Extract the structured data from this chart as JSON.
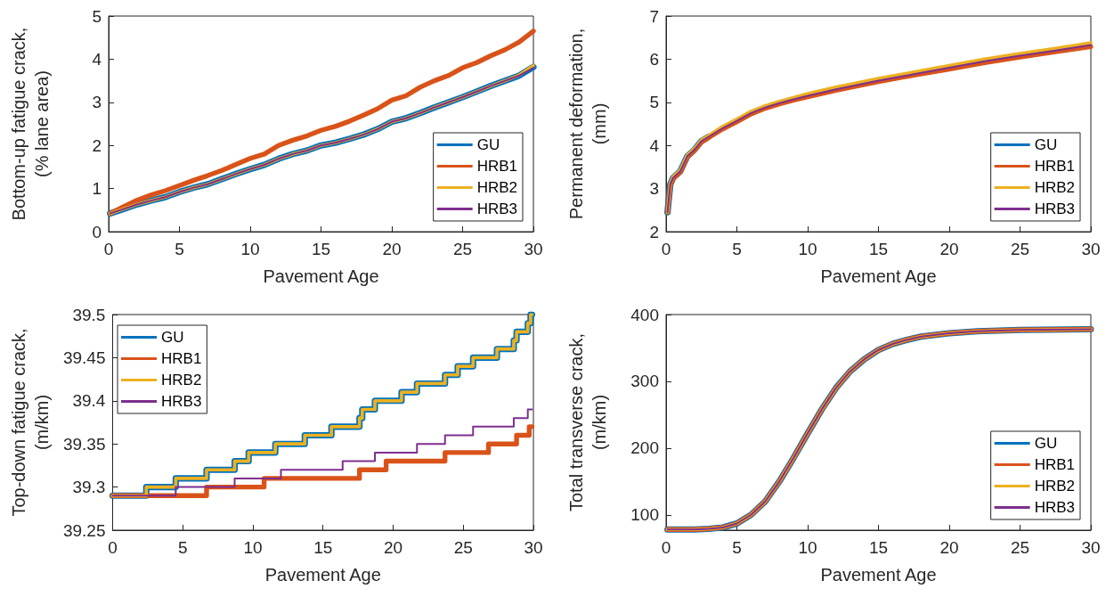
{
  "chart_data": [
    {
      "type": "line",
      "xlabel": "Pavement Age",
      "ylabel": "Bottom-up fatigue crack, (% lane area)",
      "xlim": [
        0,
        30
      ],
      "xticks": [
        0,
        5,
        10,
        15,
        20,
        25,
        30
      ],
      "ylim": [
        0,
        5
      ],
      "yticks": [
        0,
        1,
        2,
        3,
        4,
        5
      ],
      "grid": false,
      "legend": "bottom right",
      "marker": "none",
      "line_style": "solid",
      "x": [
        0.1,
        1,
        2,
        3,
        4,
        5,
        6,
        7,
        8,
        9,
        10,
        11,
        12,
        13,
        14,
        15,
        16,
        17,
        18,
        19,
        20,
        21,
        22,
        23,
        24,
        25,
        26,
        27,
        28,
        29,
        30
      ],
      "series": [
        {
          "name": "GU",
          "color": "#0072bd",
          "values": [
            0.42,
            0.52,
            0.63,
            0.72,
            0.8,
            0.92,
            1.02,
            1.1,
            1.22,
            1.34,
            1.45,
            1.55,
            1.69,
            1.8,
            1.88,
            2.0,
            2.06,
            2.15,
            2.25,
            2.38,
            2.55,
            2.63,
            2.75,
            2.88,
            3.0,
            3.12,
            3.25,
            3.38,
            3.5,
            3.62,
            3.82
          ]
        },
        {
          "name": "HRB1",
          "color": "#d95319",
          "values": [
            0.42,
            0.57,
            0.73,
            0.85,
            0.95,
            1.07,
            1.19,
            1.3,
            1.42,
            1.56,
            1.7,
            1.8,
            2.0,
            2.12,
            2.22,
            2.35,
            2.44,
            2.56,
            2.7,
            2.85,
            3.05,
            3.15,
            3.35,
            3.5,
            3.62,
            3.8,
            3.92,
            4.08,
            4.22,
            4.4,
            4.65
          ]
        },
        {
          "name": "HRB2",
          "color": "#edb120",
          "values": [
            0.42,
            0.52,
            0.63,
            0.72,
            0.8,
            0.92,
            1.02,
            1.1,
            1.22,
            1.34,
            1.45,
            1.55,
            1.69,
            1.8,
            1.88,
            2.0,
            2.06,
            2.15,
            2.25,
            2.38,
            2.55,
            2.63,
            2.75,
            2.88,
            3.0,
            3.12,
            3.25,
            3.38,
            3.5,
            3.63,
            3.85
          ]
        },
        {
          "name": "HRB3",
          "color": "#7e2f8e",
          "values": [
            0.42,
            0.52,
            0.63,
            0.72,
            0.8,
            0.92,
            1.02,
            1.1,
            1.22,
            1.34,
            1.45,
            1.55,
            1.69,
            1.8,
            1.88,
            2.0,
            2.06,
            2.15,
            2.25,
            2.38,
            2.55,
            2.63,
            2.75,
            2.88,
            3.0,
            3.12,
            3.25,
            3.38,
            3.5,
            3.62,
            3.8
          ]
        }
      ]
    },
    {
      "type": "line",
      "xlabel": "Pavement Age",
      "ylabel": "Permanent deformation, (mm)",
      "xlim": [
        0,
        30
      ],
      "xticks": [
        0,
        5,
        10,
        15,
        20,
        25,
        30
      ],
      "ylim": [
        2,
        7
      ],
      "yticks": [
        2,
        3,
        4,
        5,
        6,
        7
      ],
      "grid": false,
      "legend": "bottom right",
      "marker": "none",
      "line_style": "solid",
      "x": [
        0.1,
        0.3,
        0.5,
        1,
        1.5,
        2,
        2.5,
        3,
        4,
        5,
        6,
        7,
        8,
        9,
        10,
        12,
        15,
        17.5,
        20,
        22.5,
        25,
        27.5,
        30
      ],
      "series": [
        {
          "name": "GU",
          "color": "#0072bd",
          "values": [
            2.45,
            3.1,
            3.25,
            3.4,
            3.75,
            3.9,
            4.1,
            4.2,
            null,
            null,
            null,
            null,
            null,
            null,
            null,
            null,
            null,
            null,
            null,
            null,
            null,
            null,
            null
          ]
        },
        {
          "name": "HRB1",
          "color": "#d95319",
          "values": [
            2.45,
            3.08,
            3.23,
            3.38,
            3.73,
            3.88,
            4.08,
            4.18,
            4.38,
            4.55,
            4.73,
            4.86,
            4.96,
            5.05,
            5.13,
            5.28,
            5.48,
            5.63,
            5.77,
            5.92,
            6.05,
            6.17,
            6.29
          ]
        },
        {
          "name": "HRB2",
          "color": "#edb120",
          "values": [
            2.45,
            3.12,
            3.28,
            3.43,
            3.78,
            3.93,
            4.13,
            4.23,
            4.44,
            4.61,
            4.79,
            4.92,
            5.02,
            5.11,
            5.2,
            5.35,
            5.55,
            5.7,
            5.85,
            6.0,
            6.13,
            6.25,
            6.38
          ]
        },
        {
          "name": "HRB3",
          "color": "#7e2f8e",
          "values": [
            2.45,
            3.1,
            3.25,
            3.4,
            3.75,
            3.9,
            4.1,
            4.2,
            4.4,
            4.57,
            4.75,
            4.88,
            4.98,
            5.07,
            5.15,
            5.3,
            5.5,
            5.65,
            5.8,
            5.95,
            6.08,
            6.2,
            6.33
          ]
        }
      ]
    },
    {
      "type": "step",
      "xlabel": "Pavement Age",
      "ylabel": "Top-down fatigue crack, (m/km)",
      "xlim": [
        0,
        30
      ],
      "xticks": [
        0,
        5,
        10,
        15,
        20,
        25,
        30
      ],
      "ylim": [
        39.25,
        39.5
      ],
      "yticks": [
        39.25,
        39.3,
        39.35,
        39.4,
        39.45,
        39.5
      ],
      "grid": false,
      "legend": "top left",
      "marker": "none",
      "line_style": "solid",
      "series": [
        {
          "name": "GU",
          "color": "#0072bd",
          "x": [
            0,
            2.4,
            4.5,
            6.7,
            8.7,
            9.7,
            11.6,
            13.7,
            15.6,
            17.6,
            17.8,
            18.7,
            20.6,
            21.7,
            23.7,
            24.6,
            25.7,
            27.4,
            28.6,
            28.8,
            29.6,
            29.8,
            29.9
          ],
          "values": [
            39.29,
            39.3,
            39.31,
            39.32,
            39.33,
            39.34,
            39.35,
            39.36,
            39.37,
            39.38,
            39.39,
            39.4,
            39.41,
            39.42,
            39.43,
            39.44,
            39.45,
            39.46,
            39.47,
            39.48,
            39.49,
            39.5,
            39.5
          ]
        },
        {
          "name": "HRB1",
          "color": "#d95319",
          "x": [
            0,
            6.7,
            10.8,
            17.6,
            19.5,
            23.7,
            26.8,
            28.8,
            29.7,
            29.9
          ],
          "values": [
            39.29,
            39.3,
            39.31,
            39.32,
            39.33,
            39.34,
            39.35,
            39.36,
            39.37,
            39.37
          ]
        },
        {
          "name": "HRB2",
          "color": "#edb120",
          "x": [
            0,
            2.4,
            4.5,
            6.7,
            8.7,
            9.7,
            11.6,
            13.7,
            15.6,
            17.6,
            17.8,
            18.7,
            20.6,
            21.7,
            23.7,
            24.6,
            25.7,
            27.4,
            28.6,
            28.8,
            29.6,
            29.8,
            29.9
          ],
          "values": [
            39.29,
            39.3,
            39.31,
            39.32,
            39.33,
            39.34,
            39.35,
            39.36,
            39.37,
            39.38,
            39.39,
            39.4,
            39.41,
            39.42,
            39.43,
            39.44,
            39.45,
            39.46,
            39.47,
            39.48,
            39.49,
            39.5,
            39.5
          ]
        },
        {
          "name": "HRB3",
          "color": "#7e2f8e",
          "x": [
            0,
            4.5,
            8.7,
            12,
            16.4,
            18.7,
            21.7,
            23.7,
            25.7,
            28.6,
            29.6,
            29.9
          ],
          "values": [
            39.29,
            39.3,
            39.31,
            39.32,
            39.33,
            39.34,
            39.35,
            39.36,
            39.37,
            39.38,
            39.39,
            39.39
          ]
        }
      ]
    },
    {
      "type": "line",
      "xlabel": "Pavement Age",
      "ylabel": "Total transverse crack, (m/km)",
      "xlim": [
        0,
        30
      ],
      "xticks": [
        0,
        5,
        10,
        15,
        20,
        25,
        30
      ],
      "ylim": [
        77,
        400
      ],
      "yticks": [
        100,
        200,
        300,
        400
      ],
      "grid": false,
      "legend": "bottom right",
      "marker": "none",
      "line_style": "solid",
      "x": [
        0.1,
        2,
        3,
        4,
        5,
        6,
        7,
        8,
        9,
        10,
        11,
        12,
        13,
        14,
        15,
        16,
        17,
        18,
        20,
        22,
        25,
        30
      ],
      "series": [
        {
          "name": "GU",
          "color": "#0072bd",
          "values": [
            78,
            78,
            79,
            81,
            87,
            100,
            120,
            150,
            185,
            222,
            258,
            290,
            315,
            333,
            347,
            356,
            362,
            367,
            372,
            375,
            377,
            378
          ]
        },
        {
          "name": "HRB1",
          "color": "#d95319",
          "values": [
            78,
            78,
            79,
            81,
            87,
            100,
            120,
            150,
            185,
            222,
            258,
            290,
            315,
            333,
            347,
            356,
            362,
            367,
            372,
            375,
            377,
            378
          ]
        },
        {
          "name": "HRB2",
          "color": "#edb120",
          "values": [
            78,
            78,
            79,
            81,
            87,
            100,
            120,
            150,
            185,
            222,
            258,
            290,
            315,
            333,
            347,
            356,
            362,
            367,
            372,
            375,
            377,
            378
          ]
        },
        {
          "name": "HRB3",
          "color": "#7e2f8e",
          "values": [
            78,
            78,
            79,
            81,
            87,
            100,
            120,
            150,
            185,
            222,
            258,
            290,
            315,
            333,
            347,
            356,
            362,
            367,
            372,
            375,
            377,
            378
          ]
        }
      ]
    }
  ]
}
